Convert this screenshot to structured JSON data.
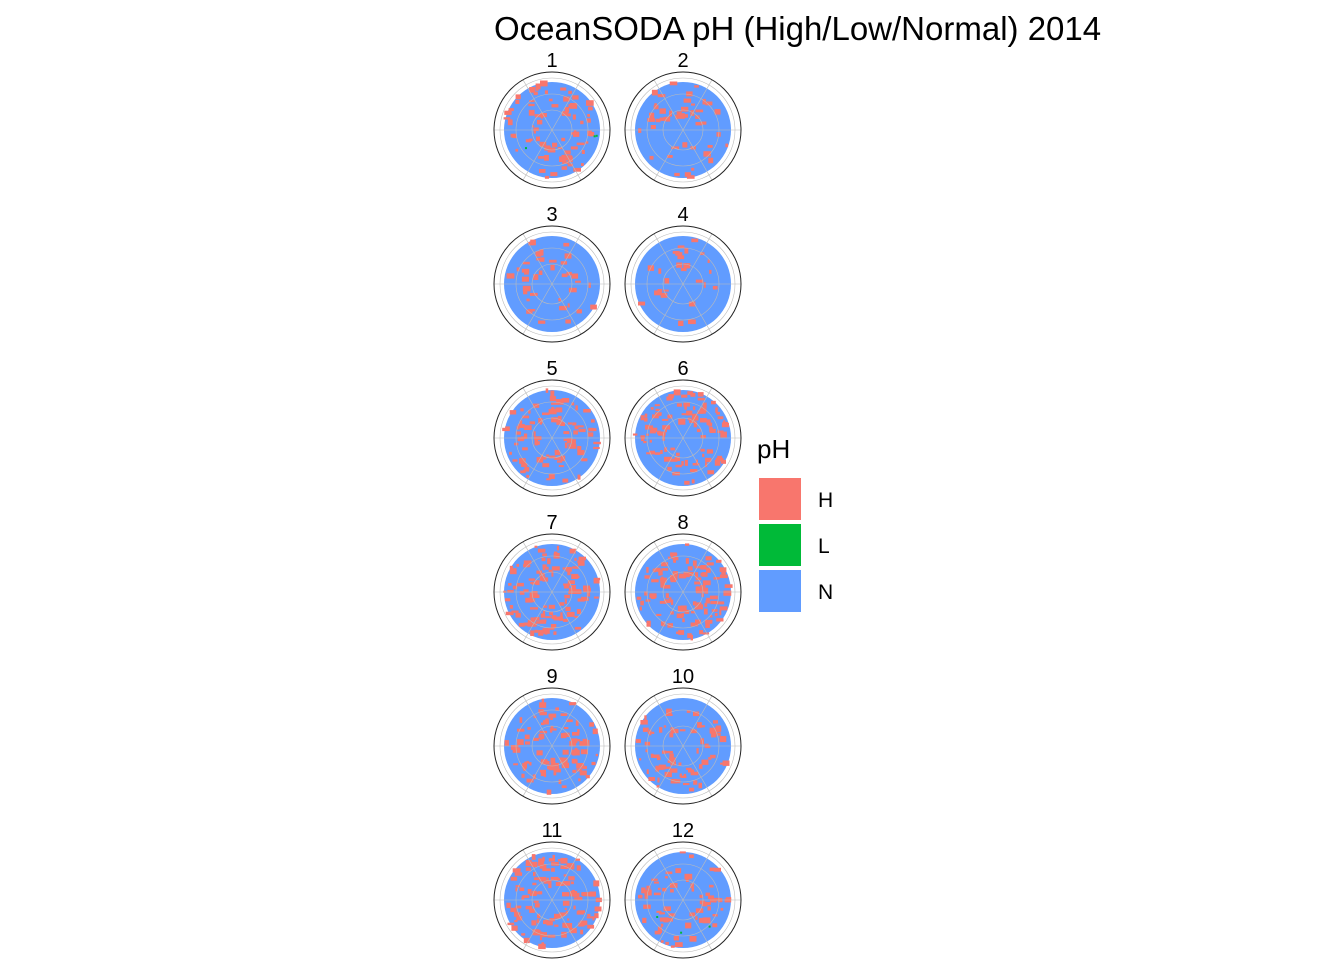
{
  "chart_data": {
    "type": "heatmap",
    "title": "OceanSODA pH (High/Low/Normal) 2014",
    "projection": "south-polar-stereographic",
    "facets": [
      {
        "label": "1",
        "high_fraction": 0.3,
        "low_fraction": 0.01
      },
      {
        "label": "2",
        "high_fraction": 0.18,
        "low_fraction": 0.0
      },
      {
        "label": "3",
        "high_fraction": 0.15,
        "low_fraction": 0.0
      },
      {
        "label": "4",
        "high_fraction": 0.1,
        "low_fraction": 0.0
      },
      {
        "label": "5",
        "high_fraction": 0.35,
        "low_fraction": 0.0
      },
      {
        "label": "6",
        "high_fraction": 0.4,
        "low_fraction": 0.0
      },
      {
        "label": "7",
        "high_fraction": 0.45,
        "low_fraction": 0.0
      },
      {
        "label": "8",
        "high_fraction": 0.42,
        "low_fraction": 0.0
      },
      {
        "label": "9",
        "high_fraction": 0.35,
        "low_fraction": 0.0
      },
      {
        "label": "10",
        "high_fraction": 0.28,
        "low_fraction": 0.0
      },
      {
        "label": "11",
        "high_fraction": 0.45,
        "low_fraction": 0.0
      },
      {
        "label": "12",
        "high_fraction": 0.25,
        "low_fraction": 0.01
      }
    ],
    "legend": {
      "title": "pH",
      "placement": "right",
      "entries": [
        {
          "label": "H",
          "color": "#F8766D"
        },
        {
          "label": "L",
          "color": "#00BA38"
        },
        {
          "label": "N",
          "color": "#619CFF"
        }
      ]
    },
    "land_color": "#8c8c8c",
    "grid": true
  }
}
